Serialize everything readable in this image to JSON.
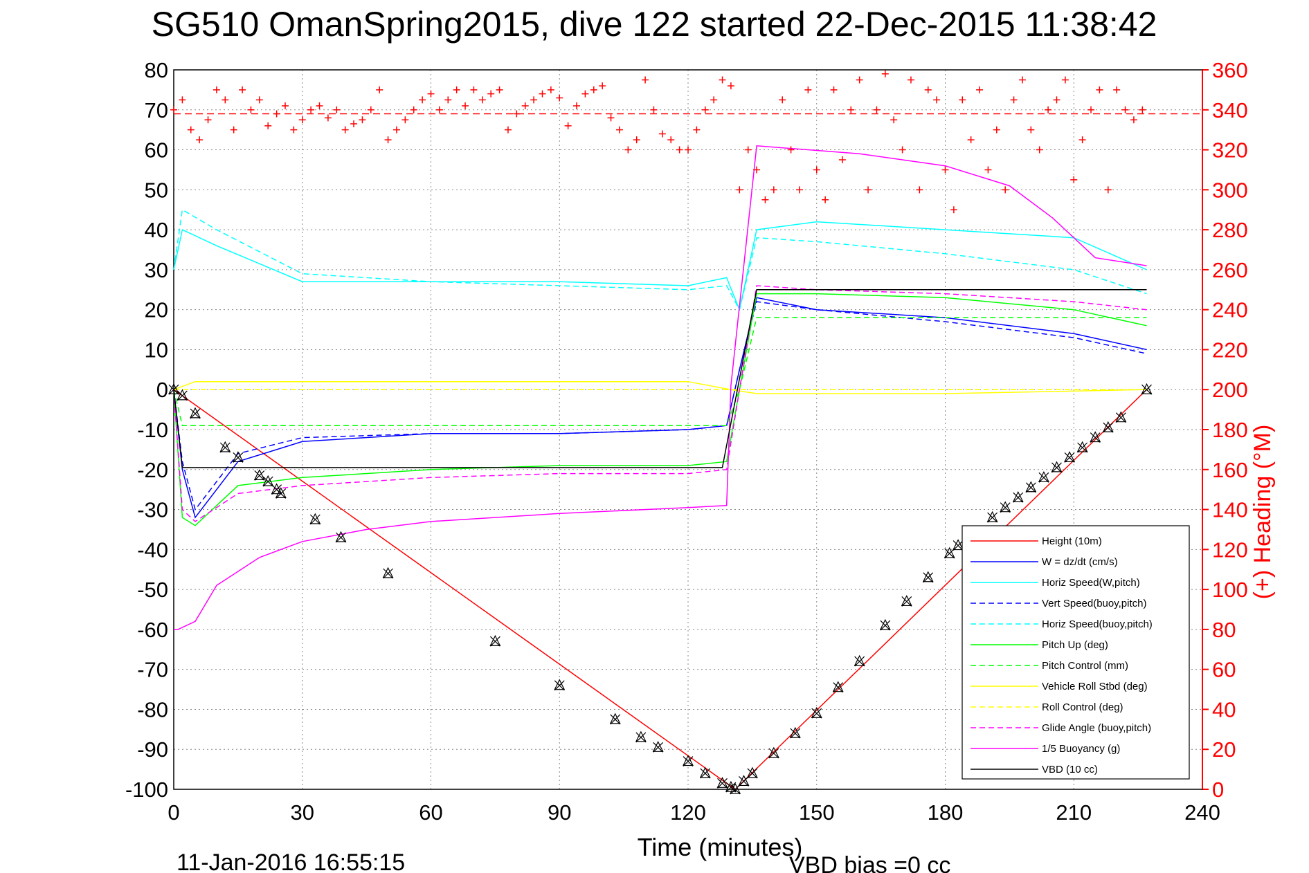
{
  "figure": {
    "title": "SG510 OmanSpring2015, dive 122 started 22-Dec-2015 11:38:42",
    "footer_left": "11-Jan-2016 16:55:15",
    "footer_right": "VBD bias =0 cc"
  },
  "colors": {
    "height": "#ff0000",
    "w": "#0000ff",
    "horiz_speed": "#00ffff",
    "pitch": "#00ff00",
    "roll": "#ffff00",
    "glide": "#ff00ff",
    "buoyancy": "#ff00ff",
    "vbd": "#000000",
    "heading": "#ff0000"
  },
  "chart_data": {
    "type": "line",
    "xlabel": "Time (minutes)",
    "y2label": "(+) Heading (°M)",
    "xlim": [
      0,
      240
    ],
    "ylim": [
      -100,
      80
    ],
    "y2lim": [
      0,
      360
    ],
    "xticks": [
      0,
      30,
      60,
      90,
      120,
      150,
      180,
      210,
      240
    ],
    "yticks": [
      -100,
      -90,
      -80,
      -70,
      -60,
      -50,
      -40,
      -30,
      -20,
      -10,
      0,
      10,
      20,
      30,
      40,
      50,
      60,
      70,
      80
    ],
    "y2ticks": [
      0,
      20,
      40,
      60,
      80,
      100,
      120,
      140,
      160,
      180,
      200,
      220,
      240,
      260,
      280,
      300,
      320,
      340,
      360
    ],
    "grid": true,
    "legend_position": "lower-right",
    "series": [
      {
        "name": "Height (10m)",
        "style": "solid",
        "x": [
          0,
          131,
          227
        ],
        "y": [
          0,
          -100,
          0
        ]
      },
      {
        "name": "W = dz/dt (cm/s)",
        "style": "solid",
        "x": [
          0,
          2,
          5,
          15,
          30,
          60,
          90,
          120,
          129,
          132,
          136,
          150,
          180,
          210,
          227
        ],
        "y": [
          0,
          -20,
          -32,
          -18,
          -13,
          -11,
          -11,
          -10,
          -9,
          5,
          23,
          20,
          18,
          14,
          10
        ]
      },
      {
        "name": "Horiz Speed(W,pitch)",
        "style": "solid",
        "x": [
          0,
          2,
          10,
          30,
          60,
          90,
          120,
          129,
          132,
          136,
          150,
          180,
          210,
          227
        ],
        "y": [
          30,
          40,
          36,
          27,
          27,
          27,
          26,
          28,
          20,
          40,
          42,
          40,
          38,
          30
        ]
      },
      {
        "name": "Vert Speed(buoy,pitch)",
        "style": "dashed",
        "x": [
          0,
          2,
          5,
          15,
          30,
          60,
          90,
          120,
          129,
          132,
          136,
          150,
          180,
          210,
          227
        ],
        "y": [
          0,
          -18,
          -30,
          -16,
          -12,
          -11,
          -11,
          -10,
          -9,
          5,
          22,
          20,
          17,
          13,
          9
        ]
      },
      {
        "name": "Horiz Speed(buoy,pitch)",
        "style": "dashed",
        "x": [
          0,
          2,
          10,
          30,
          60,
          90,
          120,
          129,
          132,
          136,
          150,
          180,
          210,
          227
        ],
        "y": [
          30,
          45,
          40,
          29,
          27,
          26,
          25,
          26,
          20,
          38,
          37,
          34,
          30,
          24
        ]
      },
      {
        "name": "Pitch Up (deg)",
        "style": "solid",
        "x": [
          0,
          2,
          5,
          15,
          30,
          60,
          90,
          120,
          129,
          132,
          136,
          150,
          180,
          210,
          227
        ],
        "y": [
          0,
          -32,
          -34,
          -24,
          -22,
          -20,
          -19,
          -19,
          -18,
          0,
          24,
          24,
          23,
          20,
          16
        ]
      },
      {
        "name": "Pitch Control (mm)",
        "style": "dashed",
        "x": [
          0,
          2,
          129,
          132,
          136,
          227
        ],
        "y": [
          0,
          -9,
          -9,
          0,
          18,
          18
        ]
      },
      {
        "name": "Vehicle Roll Stbd (deg)",
        "style": "solid",
        "x": [
          0,
          5,
          30,
          60,
          90,
          120,
          130,
          136,
          180,
          227
        ],
        "y": [
          0,
          2,
          2,
          2,
          2,
          2,
          0,
          -1,
          -1,
          0
        ]
      },
      {
        "name": "Roll Control (deg)",
        "style": "dashed",
        "x": [
          0,
          130,
          136,
          227
        ],
        "y": [
          0,
          0,
          0,
          0
        ]
      },
      {
        "name": "Glide Angle (buoy,pitch)",
        "style": "dashed",
        "x": [
          0,
          2,
          5,
          15,
          30,
          60,
          90,
          120,
          129,
          132,
          136,
          150,
          180,
          210,
          227
        ],
        "y": [
          0,
          -30,
          -33,
          -26,
          -24,
          -22,
          -21,
          -21,
          -20,
          0,
          26,
          25,
          24,
          22,
          20
        ]
      },
      {
        "name": "1/5 Buoyancy (g)",
        "style": "solid",
        "x": [
          0,
          1,
          5,
          10,
          20,
          30,
          45,
          60,
          90,
          120,
          129,
          130,
          136,
          160,
          180,
          195,
          205,
          215,
          227
        ],
        "y": [
          -60,
          -60,
          -58,
          -49,
          -42,
          -38,
          -35,
          -33,
          -31,
          -29.5,
          -29,
          1,
          61,
          59,
          56,
          51,
          43,
          33,
          31
        ]
      },
      {
        "name": "VBD (10 cc)",
        "style": "solid",
        "x": [
          0,
          2,
          128,
          136,
          227
        ],
        "y": [
          0,
          -19.5,
          -19.5,
          25,
          25
        ]
      }
    ],
    "heading": {
      "name": "Heading",
      "axis": "right",
      "marker": "+",
      "target": 338,
      "x": [
        0,
        2,
        4,
        6,
        8,
        10,
        12,
        14,
        16,
        18,
        20,
        22,
        24,
        26,
        28,
        30,
        32,
        34,
        36,
        38,
        40,
        42,
        44,
        46,
        48,
        50,
        52,
        54,
        56,
        58,
        60,
        62,
        64,
        66,
        68,
        70,
        72,
        74,
        76,
        78,
        80,
        82,
        84,
        86,
        88,
        90,
        92,
        94,
        96,
        98,
        100,
        102,
        104,
        106,
        108,
        110,
        112,
        114,
        116,
        118,
        120,
        122,
        124,
        126,
        128,
        130,
        132,
        134,
        136,
        138,
        140,
        142,
        144,
        146,
        148,
        150,
        152,
        154,
        156,
        158,
        160,
        162,
        164,
        166,
        168,
        170,
        172,
        174,
        176,
        178,
        180,
        182,
        184,
        186,
        188,
        190,
        192,
        194,
        196,
        198,
        200,
        202,
        204,
        206,
        208,
        210,
        212,
        214,
        216,
        218,
        220,
        222,
        224,
        226
      ],
      "y": [
        340,
        345,
        330,
        325,
        335,
        350,
        345,
        330,
        350,
        340,
        345,
        332,
        338,
        342,
        330,
        335,
        340,
        342,
        336,
        340,
        330,
        333,
        335,
        340,
        350,
        325,
        330,
        335,
        340,
        345,
        348,
        340,
        345,
        350,
        342,
        350,
        345,
        348,
        350,
        330,
        338,
        342,
        345,
        348,
        350,
        346,
        332,
        342,
        348,
        350,
        352,
        336,
        330,
        320,
        325,
        355,
        340,
        328,
        325,
        320,
        320,
        330,
        340,
        345,
        355,
        352,
        300,
        320,
        310,
        295,
        300,
        345,
        320,
        300,
        350,
        310,
        295,
        350,
        315,
        340,
        355,
        300,
        340,
        358,
        335,
        320,
        355,
        300,
        350,
        345,
        310,
        290,
        345,
        325,
        350,
        310,
        330,
        300,
        345,
        355,
        330,
        320,
        340,
        345,
        355,
        305,
        325,
        340,
        350,
        300,
        350,
        340,
        335,
        340
      ]
    },
    "markers": {
      "name": "Height samples",
      "x": [
        0,
        2,
        5,
        12,
        15,
        20,
        22,
        24,
        25,
        33,
        39,
        50,
        75,
        90,
        103,
        109,
        113,
        120,
        124,
        128,
        130,
        131,
        133,
        135,
        140,
        145,
        150,
        155,
        160,
        166,
        171,
        176,
        181,
        183,
        191,
        194,
        197,
        200,
        203,
        206,
        209,
        212,
        215,
        218,
        221,
        227
      ],
      "y": [
        0,
        -1.5,
        -6,
        -14.5,
        -17,
        -21.5,
        -23,
        -25,
        -26,
        -32.5,
        -37,
        -46,
        -63,
        -74,
        -82.5,
        -87,
        -89.5,
        -93,
        -96,
        -98.5,
        -99.5,
        -100,
        -98,
        -96,
        -91,
        -86,
        -81,
        -74.5,
        -68,
        -59,
        -53,
        -47,
        -41,
        -39,
        -32,
        -29.5,
        -27,
        -24.5,
        -22,
        -19.5,
        -17,
        -14.5,
        -12,
        -9.5,
        -7,
        0
      ]
    }
  }
}
